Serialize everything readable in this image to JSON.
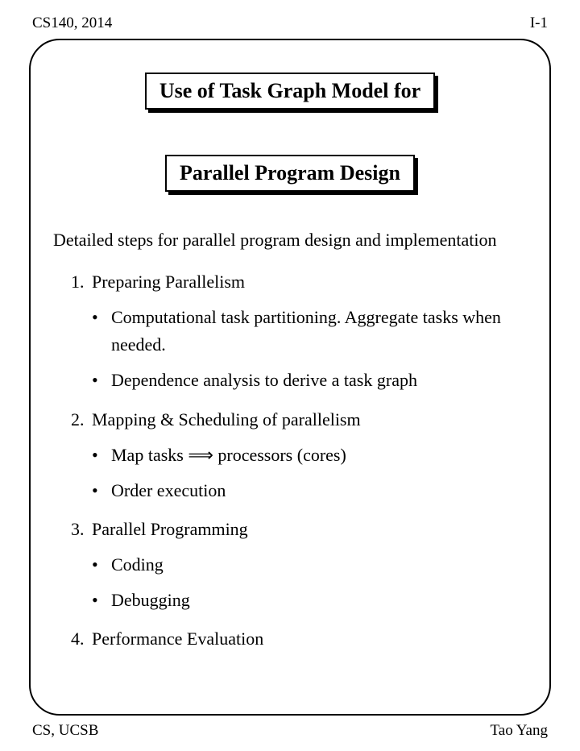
{
  "header": {
    "left": "CS140, 2014",
    "right": "I-1"
  },
  "titles": {
    "t1": "Use of Task Graph Model for",
    "t2": "Parallel Program Design"
  },
  "intro": "Detailed steps for parallel program design and implementation",
  "items": {
    "n1": "1.",
    "l1": "Preparing Parallelism",
    "s1a": "Computational task partitioning. Aggregate tasks when needed.",
    "s1b": "Dependence analysis to derive a task graph",
    "n2": "2.",
    "l2": "Mapping & Scheduling of parallelism",
    "s2a_pre": "Map tasks ",
    "s2a_arrow": "⟹",
    "s2a_post": " processors (cores)",
    "s2b": "Order execution",
    "n3": "3.",
    "l3": "Parallel Programming",
    "s3a": "Coding",
    "s3b": "Debugging",
    "n4": "4.",
    "l4": "Performance Evaluation"
  },
  "footer": {
    "left": "CS, UCSB",
    "right": "Tao Yang"
  }
}
